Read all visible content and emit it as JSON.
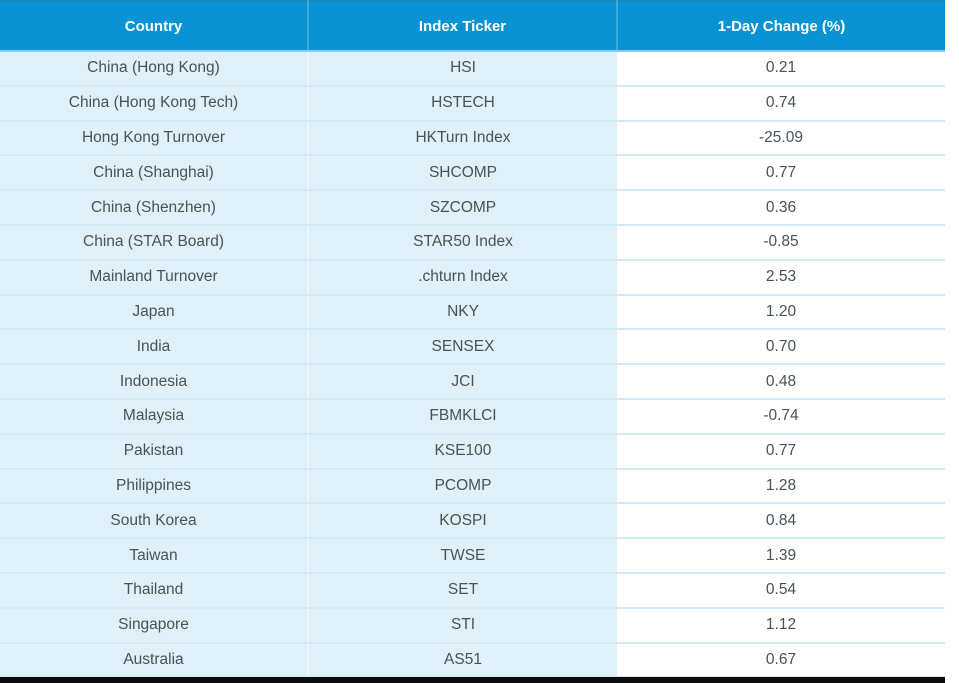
{
  "table": {
    "columns": [
      {
        "label": "Country"
      },
      {
        "label": "Index Ticker"
      },
      {
        "label": "1-Day Change (%)"
      }
    ],
    "rows": [
      {
        "country": "China (Hong Kong)",
        "ticker": "HSI",
        "change": "0.21"
      },
      {
        "country": "China (Hong Kong Tech)",
        "ticker": "HSTECH",
        "change": "0.74"
      },
      {
        "country": "Hong Kong Turnover",
        "ticker": "HKTurn Index",
        "change": "-25.09"
      },
      {
        "country": "China (Shanghai)",
        "ticker": "SHCOMP",
        "change": "0.77"
      },
      {
        "country": "China (Shenzhen)",
        "ticker": "SZCOMP",
        "change": "0.36"
      },
      {
        "country": "China (STAR Board)",
        "ticker": "STAR50 Index",
        "change": "-0.85"
      },
      {
        "country": "Mainland Turnover",
        "ticker": ".chturn Index",
        "change": "2.53"
      },
      {
        "country": "Japan",
        "ticker": "NKY",
        "change": "1.20"
      },
      {
        "country": "India",
        "ticker": "SENSEX",
        "change": "0.70"
      },
      {
        "country": "Indonesia",
        "ticker": "JCI",
        "change": "0.48"
      },
      {
        "country": "Malaysia",
        "ticker": "FBMKLCI",
        "change": "-0.74"
      },
      {
        "country": "Pakistan",
        "ticker": "KSE100",
        "change": "0.77"
      },
      {
        "country": "Philippines",
        "ticker": "PCOMP",
        "change": "1.28"
      },
      {
        "country": "South Korea",
        "ticker": "KOSPI",
        "change": "0.84"
      },
      {
        "country": "Taiwan",
        "ticker": "TWSE",
        "change": "1.39"
      },
      {
        "country": "Thailand",
        "ticker": "SET",
        "change": "0.54"
      },
      {
        "country": "Singapore",
        "ticker": "STI",
        "change": "1.12"
      },
      {
        "country": "Australia",
        "ticker": "AS51",
        "change": "0.67"
      }
    ]
  },
  "colors": {
    "header_blue": "#0a93d2",
    "row_light_blue": "#dff0f8",
    "row_border": "#d2eaf5",
    "text_gray": "#47525a",
    "bottom_bar_black": "#0b0b0b"
  },
  "chart_data": {
    "type": "table",
    "title": "",
    "columns": [
      "Country",
      "Index Ticker",
      "1-Day Change (%)"
    ],
    "rows": [
      [
        "China (Hong Kong)",
        "HSI",
        0.21
      ],
      [
        "China (Hong Kong Tech)",
        "HSTECH",
        0.74
      ],
      [
        "Hong Kong Turnover",
        "HKTurn Index",
        -25.09
      ],
      [
        "China (Shanghai)",
        "SHCOMP",
        0.77
      ],
      [
        "China (Shenzhen)",
        "SZCOMP",
        0.36
      ],
      [
        "China (STAR Board)",
        "STAR50 Index",
        -0.85
      ],
      [
        "Mainland Turnover",
        ".chturn Index",
        2.53
      ],
      [
        "Japan",
        "NKY",
        1.2
      ],
      [
        "India",
        "SENSEX",
        0.7
      ],
      [
        "Indonesia",
        "JCI",
        0.48
      ],
      [
        "Malaysia",
        "FBMKLCI",
        -0.74
      ],
      [
        "Pakistan",
        "KSE100",
        0.77
      ],
      [
        "Philippines",
        "PCOMP",
        1.28
      ],
      [
        "South Korea",
        "KOSPI",
        0.84
      ],
      [
        "Taiwan",
        "TWSE",
        1.39
      ],
      [
        "Thailand",
        "SET",
        0.54
      ],
      [
        "Singapore",
        "STI",
        1.12
      ],
      [
        "Australia",
        "AS51",
        0.67
      ]
    ]
  }
}
